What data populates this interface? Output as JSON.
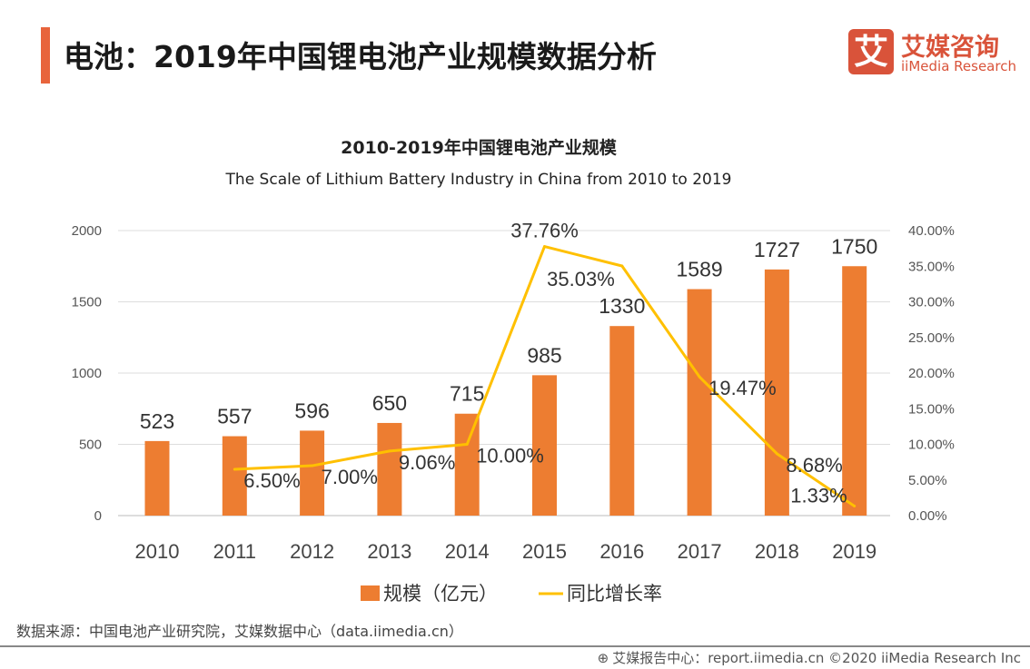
{
  "header": {
    "title": "电池：2019年中国锂电池产业规模数据分析"
  },
  "logo": {
    "mark": "艾",
    "cn": "艾媒咨询",
    "en": "iiMedia Research"
  },
  "chart_data": {
    "type": "bar+line",
    "title": "2010-2019年中国锂电池产业规模",
    "subtitle": "The Scale of  Lithium Battery Industry in China from 2010 to 2019",
    "categories": [
      "2010",
      "2011",
      "2012",
      "2013",
      "2014",
      "2015",
      "2016",
      "2017",
      "2018",
      "2019"
    ],
    "y_left": {
      "range": [
        0,
        2000
      ],
      "ticks": [
        "0",
        "500",
        "1000",
        "1500",
        "2000"
      ]
    },
    "y_right": {
      "range": [
        0,
        40
      ],
      "ticks": [
        "0.00%",
        "5.00%",
        "10.00%",
        "15.00%",
        "20.00%",
        "25.00%",
        "30.00%",
        "35.00%",
        "40.00%"
      ]
    },
    "series": [
      {
        "name": "规模（亿元）",
        "type": "bar",
        "color": "#ED7D31",
        "values": [
          523,
          557,
          596,
          650,
          715,
          985,
          1330,
          1589,
          1727,
          1750
        ],
        "labels": [
          "523",
          "557",
          "596",
          "650",
          "715",
          "985",
          "1330",
          "1589",
          "1727",
          "1750"
        ]
      },
      {
        "name": "同比增长率",
        "type": "line",
        "axis": "right",
        "color": "#FFC000",
        "values": [
          null,
          6.5,
          7.0,
          9.06,
          10.0,
          37.76,
          35.03,
          19.47,
          8.68,
          1.33
        ],
        "labels": [
          "",
          "6.50%",
          "7.00%",
          "9.06%",
          "10.00%",
          "37.76%",
          "35.03%",
          "19.47%",
          "8.68%",
          "1.33%"
        ]
      }
    ],
    "legend": "bottom",
    "grid": true
  },
  "source": "数据来源：中国电池产业研究院，艾媒数据中心（data.iimedia.cn）",
  "footer": {
    "text": "艾媒报告中心：report.iimedia.cn   ©2020  iiMedia Research  Inc",
    "icon": "globe-cursor-icon"
  }
}
